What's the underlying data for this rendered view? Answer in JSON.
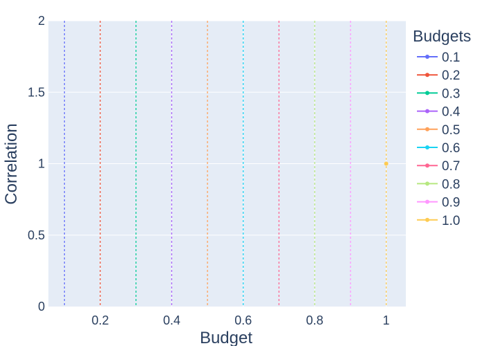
{
  "chart_data": {
    "type": "line",
    "xlabel": "Budget",
    "ylabel": "Correlation",
    "xlim": [
      0.055,
      1.055
    ],
    "ylim": [
      0,
      2
    ],
    "x_ticks": [
      0.2,
      0.4,
      0.6,
      0.8,
      1
    ],
    "x_tick_labels": [
      "0.2",
      "0.4",
      "0.6",
      "0.8",
      "1"
    ],
    "y_ticks": [
      0,
      0.5,
      1,
      1.5,
      2
    ],
    "y_tick_labels": [
      "0",
      "0.5",
      "1",
      "1.5",
      "2"
    ],
    "grid": true,
    "legend": {
      "title": "Budgets",
      "placement": "right"
    },
    "series": [
      {
        "name": "0.1",
        "color": "#636efa",
        "vline_x": 0.1,
        "points": []
      },
      {
        "name": "0.2",
        "color": "#ef553b",
        "vline_x": 0.2,
        "points": []
      },
      {
        "name": "0.3",
        "color": "#00cc96",
        "vline_x": 0.3,
        "points": []
      },
      {
        "name": "0.4",
        "color": "#ab63fa",
        "vline_x": 0.4,
        "points": []
      },
      {
        "name": "0.5",
        "color": "#ffa15a",
        "vline_x": 0.5,
        "points": []
      },
      {
        "name": "0.6",
        "color": "#19d3f3",
        "vline_x": 0.6,
        "points": []
      },
      {
        "name": "0.7",
        "color": "#ff6692",
        "vline_x": 0.7,
        "points": []
      },
      {
        "name": "0.8",
        "color": "#b6e880",
        "vline_x": 0.8,
        "points": []
      },
      {
        "name": "0.9",
        "color": "#ff97ff",
        "vline_x": 0.9,
        "points": []
      },
      {
        "name": "1.0",
        "color": "#fecb52",
        "vline_x": 1.0,
        "points": [
          {
            "x": 1.0,
            "y": 1.0
          }
        ]
      }
    ]
  }
}
